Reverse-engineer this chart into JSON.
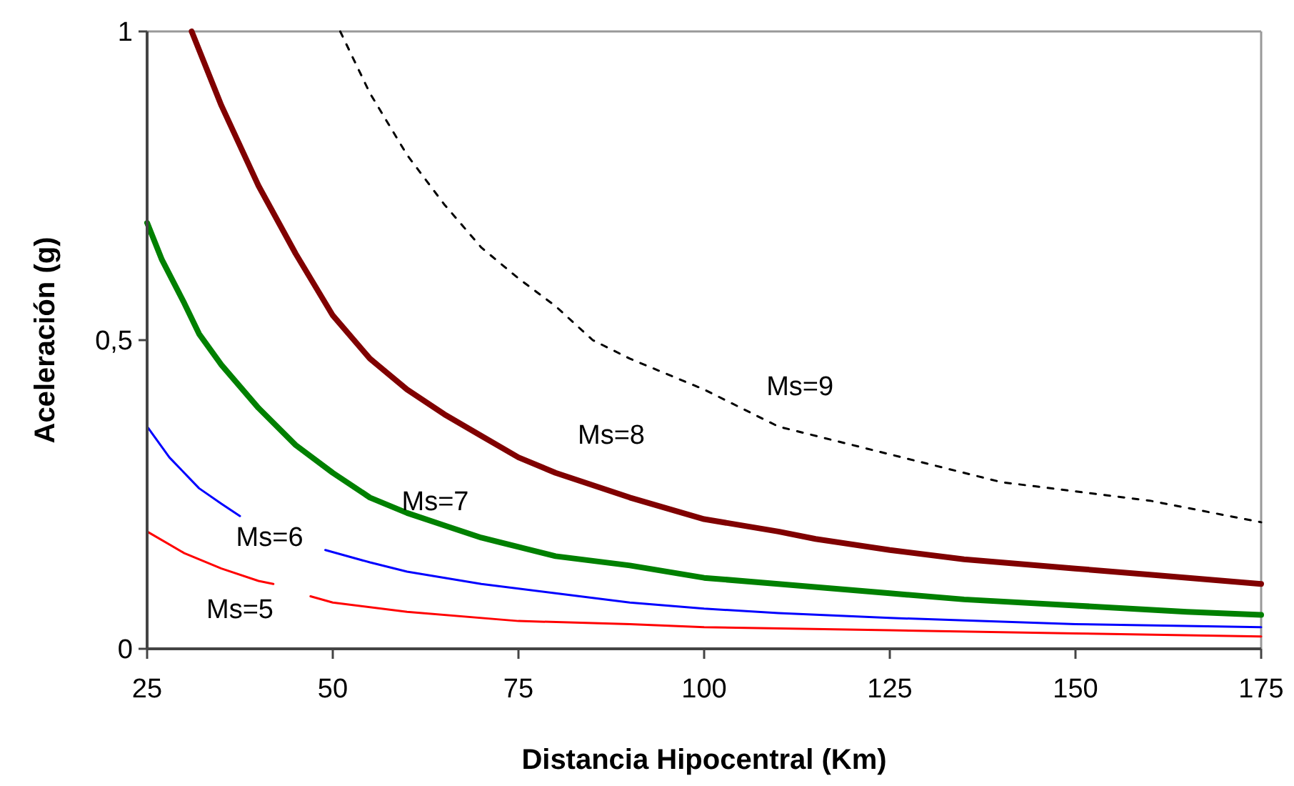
{
  "chart_data": {
    "type": "line",
    "xlabel": "Distancia Hipocentral (Km)",
    "ylabel": "Aceleración (g)",
    "xlim": [
      25,
      175
    ],
    "xticks": [
      25,
      50,
      75,
      100,
      125,
      150,
      175
    ],
    "ylim": [
      0,
      1
    ],
    "yticks": [
      0,
      {
        "value": 0.5,
        "label": "0,5"
      },
      1
    ],
    "grid": false,
    "marker": "none",
    "series": [
      {
        "name": "Ms=5",
        "color": "#ff0000",
        "line_style": "solid",
        "x": [
          25,
          30,
          35,
          40,
          42,
          44,
          47,
          50,
          60,
          75,
          90,
          100,
          125,
          150,
          175
        ],
        "values": [
          0.19,
          0.155,
          0.13,
          0.11,
          0.105,
          null,
          0.085,
          0.075,
          0.06,
          0.045,
          0.04,
          0.035,
          0.03,
          0.025,
          0.02
        ]
      },
      {
        "name": "Ms=6",
        "color": "#0000ff",
        "line_style": "solid",
        "x": [
          25,
          28,
          32,
          35,
          37.5,
          43,
          49,
          55,
          60,
          70,
          80,
          90,
          100,
          110,
          125,
          150,
          175
        ],
        "values": [
          0.36,
          0.31,
          0.26,
          0.235,
          0.215,
          null,
          0.16,
          0.14,
          0.125,
          0.105,
          0.09,
          0.075,
          0.065,
          0.058,
          0.05,
          0.04,
          0.035
        ]
      },
      {
        "name": "Ms=7",
        "color": "#008000",
        "line_style": "solid",
        "x": [
          25,
          27,
          30,
          32,
          35,
          40,
          45,
          50,
          55,
          60,
          65,
          70,
          75,
          80,
          90,
          100,
          110,
          125,
          135,
          150,
          165,
          175
        ],
        "values": [
          0.69,
          0.63,
          0.56,
          0.51,
          0.46,
          0.39,
          0.33,
          0.285,
          0.245,
          0.22,
          0.2,
          0.18,
          0.165,
          0.15,
          0.135,
          0.115,
          0.105,
          0.09,
          0.08,
          0.07,
          0.06,
          0.055
        ]
      },
      {
        "name": "Ms=8",
        "color": "#800000",
        "line_style": "solid",
        "x": [
          31,
          35,
          40,
          45,
          50,
          55,
          60,
          65,
          70,
          75,
          80,
          90,
          100,
          110,
          115,
          125,
          135,
          150,
          160,
          175
        ],
        "values": [
          1.0,
          0.88,
          0.75,
          0.64,
          0.54,
          0.47,
          0.42,
          0.38,
          0.345,
          0.31,
          0.285,
          0.245,
          0.21,
          0.19,
          0.178,
          0.16,
          0.145,
          0.13,
          0.12,
          0.105
        ]
      },
      {
        "name": "Ms=9",
        "color": "#000000",
        "line_style": "dashed",
        "x": [
          51,
          55,
          60,
          65,
          70,
          75,
          80,
          85,
          90,
          100,
          105,
          110,
          120,
          130,
          140,
          150,
          160,
          175
        ],
        "values": [
          1.0,
          0.9,
          0.8,
          0.72,
          0.65,
          0.6,
          0.555,
          0.5,
          0.47,
          0.42,
          0.39,
          0.36,
          0.33,
          0.3,
          0.27,
          0.255,
          0.24,
          0.205
        ]
      }
    ]
  }
}
